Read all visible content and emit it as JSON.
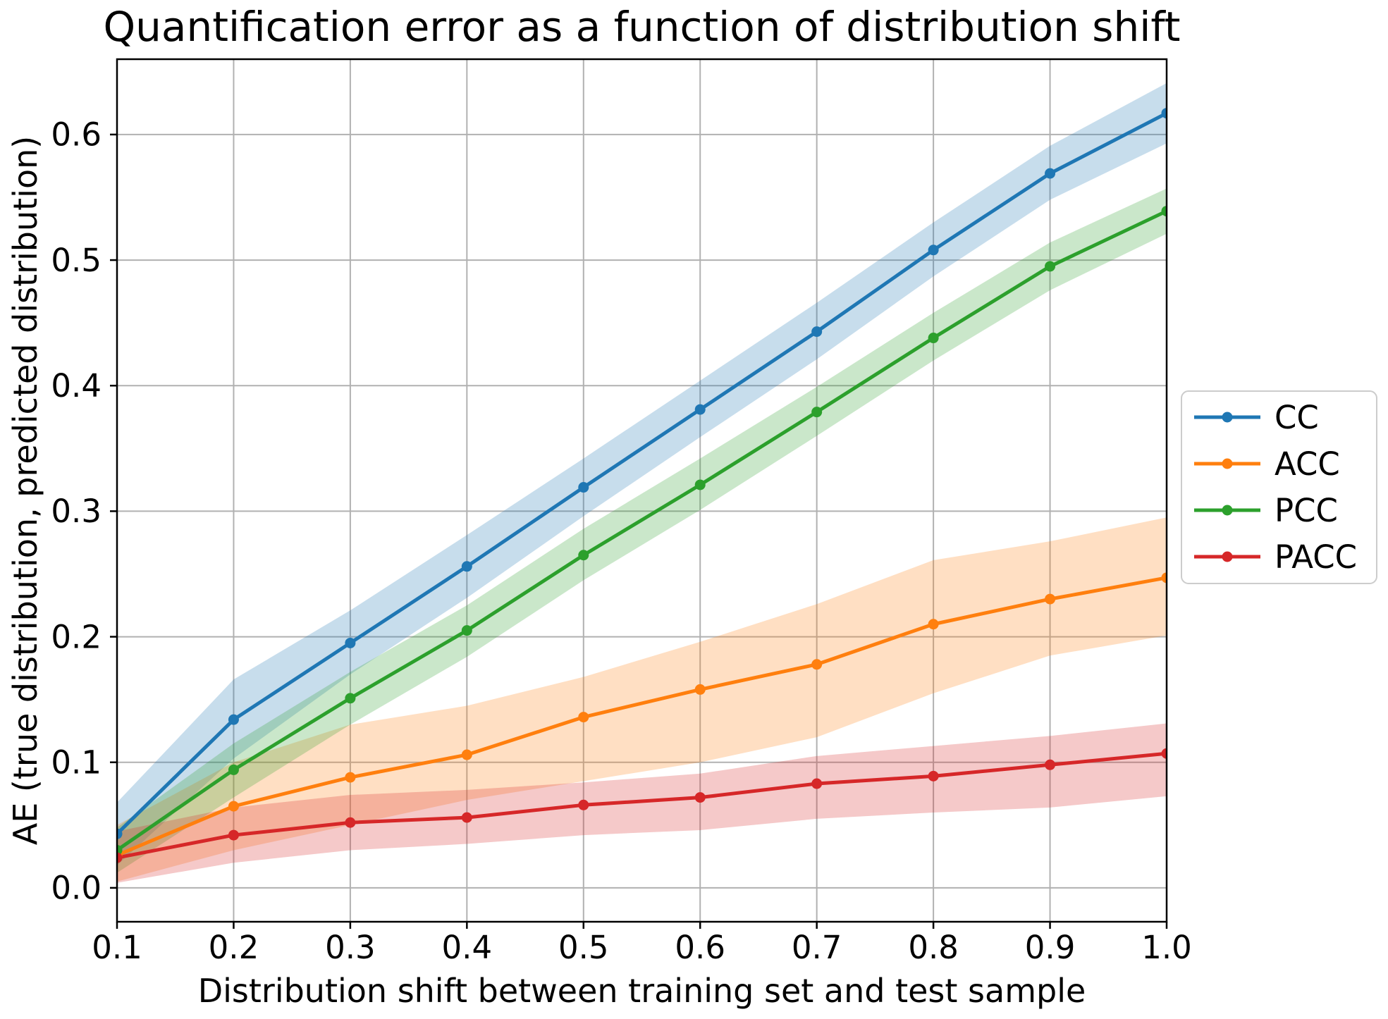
{
  "figure": {
    "background": "#ffffff",
    "grid_color": "#b1b1b1",
    "spine_color": "#000000",
    "text_color": "#000000",
    "legend_border_color": "#cccccc",
    "band_alpha": 0.25
  },
  "chart_data": {
    "type": "line",
    "title": "Quantification error as a function of distribution shift",
    "xlabel": "Distribution shift between training set and test sample",
    "ylabel": "AE (true distribution, predicted distribution)",
    "x": [
      0.1,
      0.2,
      0.3,
      0.4,
      0.5,
      0.6,
      0.7,
      0.8,
      0.9,
      1.0
    ],
    "xlim": [
      0.1,
      1.0
    ],
    "ylim": [
      -0.027,
      0.66
    ],
    "xticks": [
      0.1,
      0.2,
      0.3,
      0.4,
      0.5,
      0.6,
      0.7,
      0.8,
      0.9,
      1.0
    ],
    "xtick_labels": [
      "0.1",
      "0.2",
      "0.3",
      "0.4",
      "0.5",
      "0.6",
      "0.7",
      "0.8",
      "0.9",
      "1.0"
    ],
    "yticks": [
      0.0,
      0.1,
      0.2,
      0.3,
      0.4,
      0.5,
      0.6
    ],
    "ytick_labels": [
      "0.0",
      "0.1",
      "0.2",
      "0.3",
      "0.4",
      "0.5",
      "0.6"
    ],
    "grid": true,
    "legend_position": "outside center right",
    "series": [
      {
        "name": "CC",
        "color": "#1f77b4",
        "values": [
          0.043,
          0.134,
          0.195,
          0.256,
          0.319,
          0.381,
          0.443,
          0.508,
          0.569,
          0.617
        ],
        "band_lo": [
          0.018,
          0.103,
          0.17,
          0.231,
          0.296,
          0.359,
          0.421,
          0.487,
          0.548,
          0.593
        ],
        "band_hi": [
          0.068,
          0.166,
          0.221,
          0.281,
          0.342,
          0.404,
          0.466,
          0.53,
          0.591,
          0.641
        ]
      },
      {
        "name": "ACC",
        "color": "#ff7f0e",
        "values": [
          0.026,
          0.065,
          0.088,
          0.106,
          0.136,
          0.158,
          0.178,
          0.21,
          0.23,
          0.247
        ],
        "band_lo": [
          0.005,
          0.03,
          0.05,
          0.07,
          0.085,
          0.1,
          0.12,
          0.155,
          0.185,
          0.201
        ],
        "band_hi": [
          0.05,
          0.1,
          0.13,
          0.145,
          0.168,
          0.196,
          0.226,
          0.261,
          0.276,
          0.295
        ]
      },
      {
        "name": "PCC",
        "color": "#2ca02c",
        "values": [
          0.03,
          0.094,
          0.151,
          0.205,
          0.265,
          0.321,
          0.379,
          0.438,
          0.495,
          0.539
        ],
        "band_lo": [
          0.012,
          0.072,
          0.13,
          0.184,
          0.245,
          0.301,
          0.36,
          0.42,
          0.476,
          0.521
        ],
        "band_hi": [
          0.048,
          0.115,
          0.172,
          0.225,
          0.286,
          0.342,
          0.399,
          0.458,
          0.514,
          0.557
        ]
      },
      {
        "name": "PACC",
        "color": "#d62728",
        "values": [
          0.024,
          0.042,
          0.052,
          0.056,
          0.066,
          0.072,
          0.083,
          0.089,
          0.098,
          0.107
        ],
        "band_lo": [
          0.004,
          0.02,
          0.03,
          0.035,
          0.042,
          0.046,
          0.055,
          0.06,
          0.064,
          0.073
        ],
        "band_hi": [
          0.045,
          0.064,
          0.074,
          0.078,
          0.084,
          0.091,
          0.105,
          0.113,
          0.121,
          0.131
        ]
      }
    ]
  }
}
